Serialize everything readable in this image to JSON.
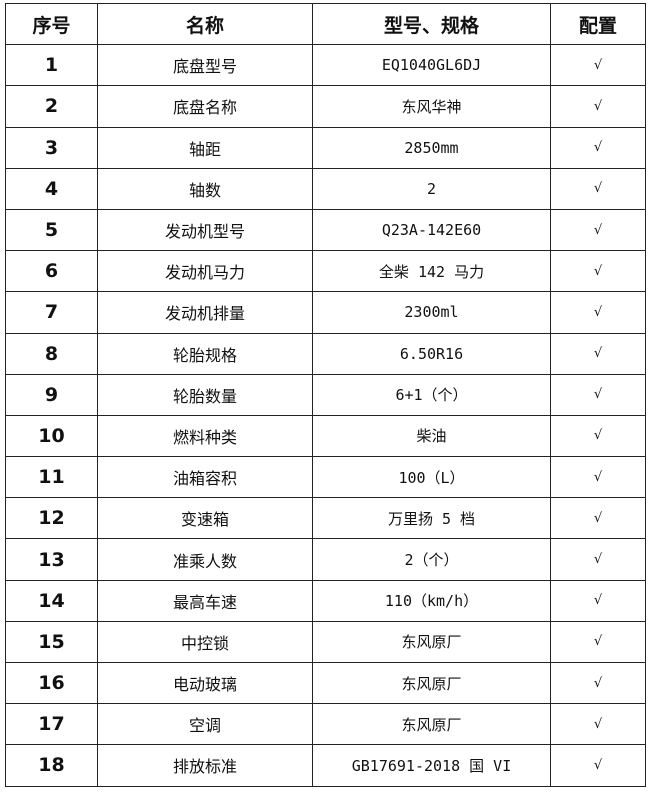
{
  "headers": [
    "序号",
    "名称",
    "型号、规格",
    "配置"
  ],
  "rows": [
    {
      "no": "1",
      "name": "底盘型号",
      "spec": "EQ1040GL6DJ",
      "config": "√"
    },
    {
      "no": "2",
      "name": "底盘名称",
      "spec": "东风华神",
      "config": "√"
    },
    {
      "no": "3",
      "name": "轴距",
      "spec": "2850mm",
      "config": "√"
    },
    {
      "no": "4",
      "name": "轴数",
      "spec": "2",
      "config": "√"
    },
    {
      "no": "5",
      "name": "发动机型号",
      "spec": "Q23A-142E60",
      "config": "√"
    },
    {
      "no": "6",
      "name": "发动机马力",
      "spec": "全柴 142 马力",
      "config": "√"
    },
    {
      "no": "7",
      "name": "发动机排量",
      "spec": "2300ml",
      "config": "√"
    },
    {
      "no": "8",
      "name": "轮胎规格",
      "spec": "6.50R16",
      "config": "√"
    },
    {
      "no": "9",
      "name": "轮胎数量",
      "spec": "6+1（个）",
      "config": "√"
    },
    {
      "no": "10",
      "name": "燃料种类",
      "spec": "柴油",
      "config": "√"
    },
    {
      "no": "11",
      "name": "油箱容积",
      "spec": "100（L）",
      "config": "√"
    },
    {
      "no": "12",
      "name": "变速箱",
      "spec": "万里扬 5 档",
      "config": "√"
    },
    {
      "no": "13",
      "name": "准乘人数",
      "spec": "2（个）",
      "config": "√"
    },
    {
      "no": "14",
      "name": "最高车速",
      "spec": "110（km/h）",
      "config": "√"
    },
    {
      "no": "15",
      "name": "中控锁",
      "spec": "东风原厂",
      "config": "√"
    },
    {
      "no": "16",
      "name": "电动玻璃",
      "spec": "东风原厂",
      "config": "√"
    },
    {
      "no": "17",
      "name": "空调",
      "spec": "东风原厂",
      "config": "√"
    },
    {
      "no": "18",
      "name": "排放标准",
      "spec": "GB17691-2018 国 VI",
      "config": "√"
    }
  ]
}
